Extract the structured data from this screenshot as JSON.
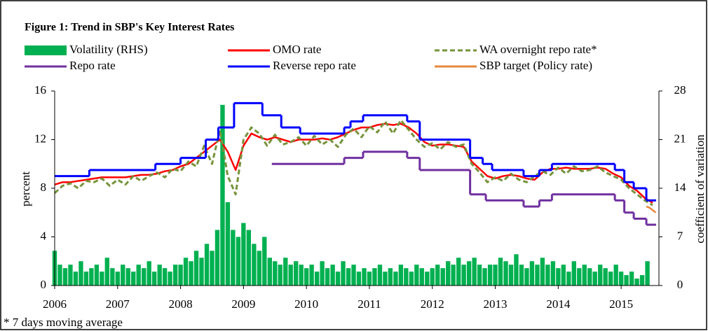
{
  "chart_data": {
    "type": "line",
    "title": "Figure 1: Trend in SBP's Key Interest Rates",
    "ylabel": "percent",
    "y2label": "coefficient of variation",
    "footnote": "* 7 days moving average",
    "xlim": [
      2006,
      2015.6
    ],
    "xticks": [
      2006,
      2007,
      2008,
      2009,
      2010,
      2011,
      2012,
      2013,
      2014,
      2015
    ],
    "ylim": [
      0,
      16
    ],
    "yticks": [
      0,
      4,
      8,
      12,
      16
    ],
    "y2lim": [
      0,
      28
    ],
    "y2ticks": [
      0,
      7,
      14,
      21,
      28
    ],
    "series": [
      {
        "name": "Volatility (RHS)",
        "type": "bar",
        "axis": "y2",
        "color": "#00b050",
        "x": [
          2006,
          2006.083,
          2006.167,
          2006.25,
          2006.333,
          2006.417,
          2006.5,
          2006.583,
          2006.667,
          2006.75,
          2006.833,
          2006.917,
          2007,
          2007.083,
          2007.167,
          2007.25,
          2007.333,
          2007.417,
          2007.5,
          2007.583,
          2007.667,
          2007.75,
          2007.833,
          2007.917,
          2008,
          2008.083,
          2008.167,
          2008.25,
          2008.333,
          2008.417,
          2008.5,
          2008.583,
          2008.667,
          2008.75,
          2008.833,
          2008.917,
          2009,
          2009.083,
          2009.167,
          2009.25,
          2009.333,
          2009.417,
          2009.5,
          2009.583,
          2009.667,
          2009.75,
          2009.833,
          2009.917,
          2010,
          2010.083,
          2010.167,
          2010.25,
          2010.333,
          2010.417,
          2010.5,
          2010.583,
          2010.667,
          2010.75,
          2010.833,
          2010.917,
          2011,
          2011.083,
          2011.167,
          2011.25,
          2011.333,
          2011.417,
          2011.5,
          2011.583,
          2011.667,
          2011.75,
          2011.833,
          2011.917,
          2012,
          2012.083,
          2012.167,
          2012.25,
          2012.333,
          2012.417,
          2012.5,
          2012.583,
          2012.667,
          2012.75,
          2012.833,
          2012.917,
          2013,
          2013.083,
          2013.167,
          2013.25,
          2013.333,
          2013.417,
          2013.5,
          2013.583,
          2013.667,
          2013.75,
          2013.833,
          2013.917,
          2014,
          2014.083,
          2014.167,
          2014.25,
          2014.333,
          2014.417,
          2014.5,
          2014.583,
          2014.667,
          2014.75,
          2014.833,
          2014.917,
          2015,
          2015.083,
          2015.167,
          2015.25,
          2015.333,
          2015.417
        ],
        "values": [
          5,
          3,
          2.5,
          3,
          2,
          3.5,
          2,
          2.5,
          3,
          2,
          4,
          2.5,
          2,
          3,
          2.5,
          2,
          3,
          2.5,
          3.5,
          2,
          3,
          2.5,
          2,
          3,
          3,
          4,
          3.5,
          5,
          4,
          6,
          5,
          8,
          26,
          12,
          8,
          7,
          9,
          8,
          6,
          5,
          7,
          4,
          3.5,
          3,
          4,
          3,
          3.5,
          3,
          2.5,
          3,
          2,
          3.5,
          2.5,
          3,
          2,
          3.5,
          2.5,
          3,
          2,
          2.5,
          2,
          2.5,
          3,
          2,
          2.5,
          2,
          3,
          2.5,
          2,
          3,
          2.5,
          2,
          2.5,
          3,
          2.5,
          3.5,
          3,
          4,
          3,
          3.5,
          4,
          3,
          2.5,
          3,
          3,
          4,
          3.5,
          3,
          4.5,
          3,
          2.5,
          3.5,
          3,
          4,
          3,
          3.5,
          2.5,
          3,
          2,
          3.5,
          2.5,
          3,
          2.5,
          2,
          3,
          2.5,
          2,
          3,
          2,
          1.5,
          2,
          1,
          1.5,
          3.5
        ]
      },
      {
        "name": "OMO rate",
        "type": "line",
        "color": "#ff0000",
        "style": "solid",
        "x": [
          2006,
          2006.125,
          2006.25,
          2006.375,
          2006.5,
          2006.625,
          2006.75,
          2006.875,
          2007,
          2007.125,
          2007.25,
          2007.375,
          2007.5,
          2007.625,
          2007.75,
          2007.875,
          2008,
          2008.125,
          2008.25,
          2008.375,
          2008.5,
          2008.625,
          2008.75,
          2008.875,
          2009,
          2009.125,
          2009.25,
          2009.375,
          2009.5,
          2009.625,
          2009.75,
          2009.875,
          2010,
          2010.125,
          2010.25,
          2010.375,
          2010.5,
          2010.625,
          2010.75,
          2010.875,
          2011,
          2011.125,
          2011.25,
          2011.375,
          2011.5,
          2011.625,
          2011.75,
          2011.875,
          2012,
          2012.125,
          2012.25,
          2012.375,
          2012.5,
          2012.625,
          2012.75,
          2012.875,
          2013,
          2013.125,
          2013.25,
          2013.375,
          2013.5,
          2013.625,
          2013.75,
          2013.875,
          2014,
          2014.125,
          2014.25,
          2014.375,
          2014.5,
          2014.625,
          2014.75,
          2014.875,
          2015,
          2015.125,
          2015.25,
          2015.375,
          2015.5
        ],
        "values": [
          8.3,
          8.5,
          8.5,
          8.6,
          8.7,
          8.8,
          8.9,
          8.9,
          8.9,
          8.9,
          9.0,
          9.1,
          9.1,
          9.2,
          9.4,
          9.5,
          9.8,
          10.0,
          10.5,
          11.0,
          11.5,
          12.0,
          11.0,
          9.5,
          11.5,
          12.5,
          12.2,
          12.0,
          12.2,
          12.0,
          11.8,
          12.0,
          12.0,
          12.0,
          12.1,
          12.0,
          12.2,
          12.5,
          12.8,
          13.0,
          13.0,
          13.2,
          13.3,
          13.2,
          13.3,
          13.0,
          12.5,
          11.8,
          11.5,
          11.6,
          11.6,
          11.5,
          11.4,
          10.2,
          9.6,
          9.0,
          8.8,
          9.0,
          9.1,
          9.0,
          8.8,
          8.7,
          9.3,
          9.6,
          9.6,
          9.7,
          9.6,
          9.6,
          9.6,
          9.7,
          9.6,
          9.2,
          8.9,
          8.2,
          7.8,
          7.2,
          6.8
        ]
      },
      {
        "name": "WA overnight repo rate*",
        "type": "line",
        "color": "#77933c",
        "style": "dashed",
        "x": [
          2006,
          2006.125,
          2006.25,
          2006.375,
          2006.5,
          2006.625,
          2006.75,
          2006.875,
          2007,
          2007.125,
          2007.25,
          2007.375,
          2007.5,
          2007.625,
          2007.75,
          2007.875,
          2008,
          2008.125,
          2008.25,
          2008.375,
          2008.5,
          2008.625,
          2008.75,
          2008.875,
          2009,
          2009.125,
          2009.25,
          2009.375,
          2009.5,
          2009.625,
          2009.75,
          2009.875,
          2010,
          2010.125,
          2010.25,
          2010.375,
          2010.5,
          2010.625,
          2010.75,
          2010.875,
          2011,
          2011.125,
          2011.25,
          2011.375,
          2011.5,
          2011.625,
          2011.75,
          2011.875,
          2012,
          2012.125,
          2012.25,
          2012.375,
          2012.5,
          2012.625,
          2012.75,
          2012.875,
          2013,
          2013.125,
          2013.25,
          2013.375,
          2013.5,
          2013.625,
          2013.75,
          2013.875,
          2014,
          2014.125,
          2014.25,
          2014.375,
          2014.5,
          2014.625,
          2014.75,
          2014.875,
          2015,
          2015.125,
          2015.25,
          2015.375,
          2015.5
        ],
        "values": [
          7.6,
          8.2,
          8.4,
          8.0,
          8.6,
          8.5,
          8.8,
          8.2,
          8.7,
          8.3,
          9.0,
          8.6,
          9.0,
          9.3,
          8.9,
          9.6,
          9.4,
          10.2,
          9.8,
          11.5,
          10.0,
          12.8,
          9.0,
          7.5,
          12.0,
          13.0,
          12.5,
          11.5,
          12.4,
          11.6,
          11.8,
          12.2,
          11.5,
          12.3,
          11.6,
          12.0,
          11.4,
          12.4,
          12.9,
          12.2,
          13.1,
          12.6,
          13.5,
          12.5,
          13.6,
          12.8,
          12.0,
          11.4,
          11.7,
          11.2,
          11.8,
          11.4,
          11.6,
          10.0,
          9.3,
          8.5,
          8.9,
          8.6,
          9.2,
          8.7,
          8.5,
          9.0,
          9.4,
          9.1,
          9.7,
          9.2,
          9.8,
          9.4,
          9.5,
          9.8,
          9.3,
          9.0,
          8.7,
          8.0,
          7.5,
          7.0,
          6.6
        ]
      },
      {
        "name": "Repo rate",
        "type": "step",
        "color": "#7030a0",
        "style": "solid",
        "x": [
          2009.45,
          2010.6,
          2010.9,
          2011.6,
          2011.8,
          2012.6,
          2012.85,
          2013.45,
          2013.7,
          2013.9,
          2014.9,
          2015.05,
          2015.2,
          2015.4
        ],
        "values": [
          10,
          10.5,
          11,
          10.5,
          9.5,
          7.5,
          7,
          6.5,
          7,
          7.5,
          7,
          6,
          5.5,
          5
        ]
      },
      {
        "name": "Reverse repo rate",
        "type": "step",
        "color": "#0000ff",
        "style": "solid",
        "x": [
          2006,
          2006.55,
          2007.6,
          2008,
          2008.4,
          2008.6,
          2008.85,
          2009.3,
          2009.6,
          2009.9,
          2010.6,
          2010.7,
          2010.9,
          2011.6,
          2011.8,
          2012.6,
          2012.8,
          2012.95,
          2013.45,
          2013.7,
          2013.9,
          2014.9,
          2015.05,
          2015.2,
          2015.4
        ],
        "values": [
          9,
          9.5,
          10,
          10.5,
          12,
          13,
          15,
          14,
          13,
          12.5,
          13,
          13.5,
          14,
          13.5,
          12,
          10.5,
          10,
          9.5,
          9,
          9.5,
          10,
          9.5,
          8.5,
          8,
          7
        ]
      },
      {
        "name": "SBP target (Policy rate)",
        "type": "line",
        "color": "#e4883c",
        "style": "solid",
        "x": [
          2015.4,
          2015.45,
          2015.5,
          2015.55
        ],
        "values": [
          6.5,
          6.4,
          6.2,
          6.0
        ]
      }
    ]
  }
}
